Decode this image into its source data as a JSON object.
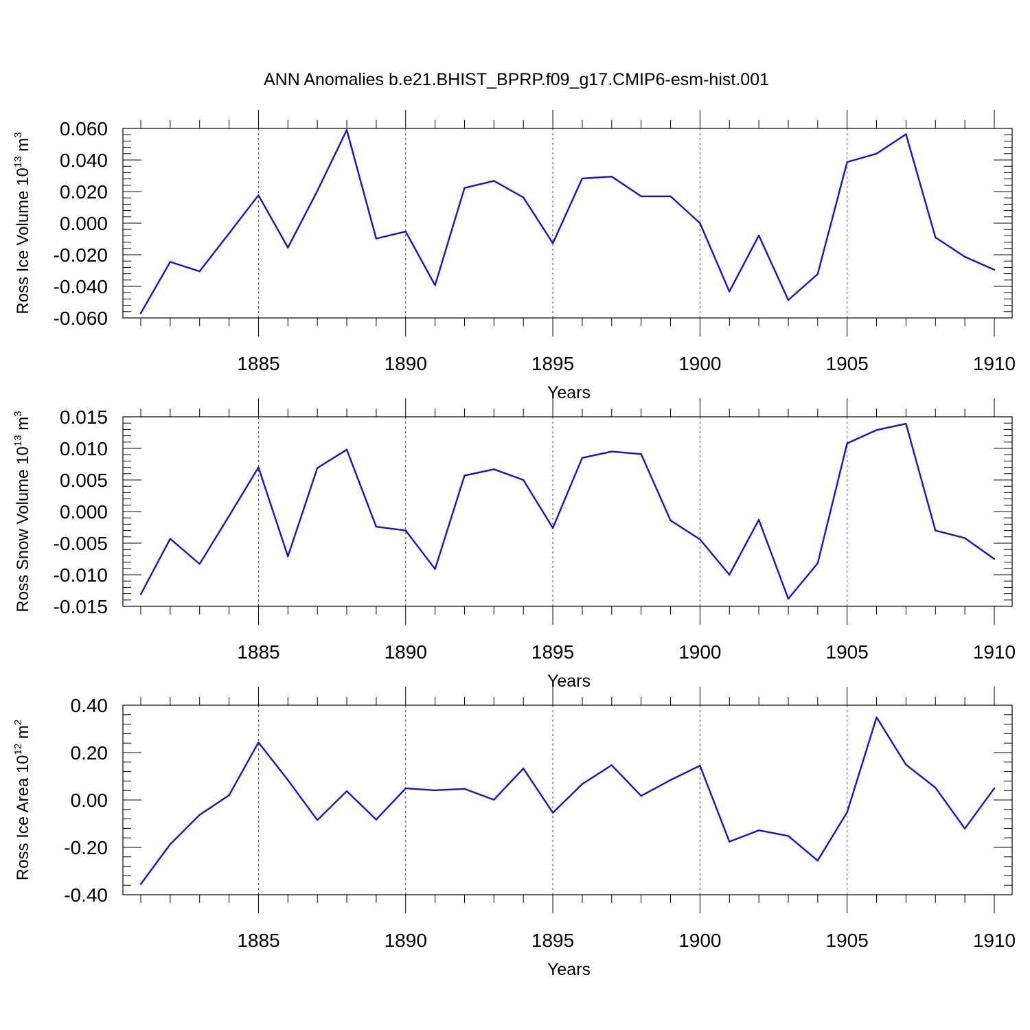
{
  "title": "ANN Anomalies b.e21.BHIST_BPRP.f09_g17.CMIP6-esm-hist.001",
  "colors": {
    "line": "#1010ee",
    "axis": "#000000",
    "grid": "#444444"
  },
  "chart_data": [
    {
      "type": "line",
      "ylabel": {
        "text": "Ross Ice Volume 10",
        "exponent": "13",
        "unit": " m",
        "unit_exponent": "3"
      },
      "xlabel": "Years",
      "xlim": [
        1881,
        1910
      ],
      "ylim": [
        -0.06,
        0.06
      ],
      "yticks": [
        -0.06,
        -0.04,
        -0.02,
        0.0,
        0.02,
        0.04,
        0.06
      ],
      "ytick_labels": [
        "-0.060",
        "-0.040",
        "-0.020",
        "0.000",
        "0.020",
        "0.040",
        "0.060"
      ],
      "xticks": [
        1885,
        1890,
        1895,
        1900,
        1905,
        1910
      ],
      "xtick_labels": [
        "1885",
        "1890",
        "1895",
        "1900",
        "1905",
        "1910"
      ],
      "grid": "vertical dashed at major x ticks",
      "series": [
        {
          "x": [
            1881,
            1882,
            1883,
            1884,
            1885,
            1886,
            1887,
            1888,
            1889,
            1890,
            1891,
            1892,
            1893,
            1894,
            1895,
            1896,
            1897,
            1898,
            1899,
            1900,
            1901,
            1902,
            1903,
            1904,
            1905,
            1906,
            1907,
            1908,
            1909,
            1910
          ],
          "values": [
            -0.057,
            -0.0245,
            -0.0305,
            -0.0065,
            0.0177,
            -0.0155,
            0.0205,
            0.059,
            -0.0098,
            -0.0053,
            -0.0393,
            0.0223,
            0.0268,
            0.0163,
            -0.0127,
            0.0283,
            0.0295,
            0.017,
            0.017,
            0.0,
            -0.0433,
            -0.0078,
            -0.0487,
            -0.0322,
            0.0387,
            0.044,
            0.0563,
            -0.009,
            -0.0213,
            -0.0295
          ]
        }
      ]
    },
    {
      "type": "line",
      "ylabel": {
        "text": "Ross Snow Volume 10",
        "exponent": "13",
        "unit": " m",
        "unit_exponent": "3"
      },
      "xlabel": "Years",
      "xlim": [
        1881,
        1910
      ],
      "ylim": [
        -0.015,
        0.015
      ],
      "yticks": [
        -0.015,
        -0.01,
        -0.005,
        0.0,
        0.005,
        0.01,
        0.015
      ],
      "ytick_labels": [
        "-0.015",
        "-0.010",
        "-0.005",
        "0.000",
        "0.005",
        "0.010",
        "0.015"
      ],
      "xticks": [
        1885,
        1890,
        1895,
        1900,
        1905,
        1910
      ],
      "xtick_labels": [
        "1885",
        "1890",
        "1895",
        "1900",
        "1905",
        "1910"
      ],
      "grid": "vertical dashed at major x ticks",
      "series": [
        {
          "x": [
            1881,
            1882,
            1883,
            1884,
            1885,
            1886,
            1887,
            1888,
            1889,
            1890,
            1891,
            1892,
            1893,
            1894,
            1895,
            1896,
            1897,
            1898,
            1899,
            1900,
            1901,
            1902,
            1903,
            1904,
            1905,
            1906,
            1907,
            1908,
            1909,
            1910
          ],
          "values": [
            -0.0131,
            -0.0043,
            -0.0083,
            -0.0007,
            0.007,
            -0.0071,
            0.0069,
            0.0098,
            -0.0024,
            -0.003,
            -0.0091,
            0.0057,
            0.0067,
            0.005,
            -0.0026,
            0.0085,
            0.0095,
            0.0091,
            -0.0014,
            -0.0044,
            -0.01,
            -0.0013,
            -0.0138,
            -0.0082,
            0.0108,
            0.0129,
            0.0139,
            -0.003,
            -0.0042,
            -0.0075
          ]
        }
      ]
    },
    {
      "type": "line",
      "ylabel": {
        "text": "Ross Ice Area 10",
        "exponent": "12",
        "unit": " m",
        "unit_exponent": "2"
      },
      "xlabel": "Years",
      "xlim": [
        1881,
        1910
      ],
      "ylim": [
        -0.4,
        0.4
      ],
      "yticks": [
        -0.4,
        -0.2,
        0.0,
        0.2,
        0.4
      ],
      "ytick_labels": [
        "-0.40",
        "-0.20",
        "0.00",
        "0.20",
        "0.40"
      ],
      "xticks": [
        1885,
        1890,
        1895,
        1900,
        1905,
        1910
      ],
      "xtick_labels": [
        "1885",
        "1890",
        "1895",
        "1900",
        "1905",
        "1910"
      ],
      "grid": "vertical dashed at major x ticks",
      "series": [
        {
          "x": [
            1881,
            1882,
            1883,
            1884,
            1885,
            1886,
            1887,
            1888,
            1889,
            1890,
            1891,
            1892,
            1893,
            1894,
            1895,
            1896,
            1897,
            1898,
            1899,
            1900,
            1901,
            1902,
            1903,
            1904,
            1905,
            1906,
            1907,
            1908,
            1909,
            1910
          ],
          "values": [
            -0.355,
            -0.187,
            -0.063,
            0.02,
            0.243,
            0.084,
            -0.085,
            0.037,
            -0.083,
            0.049,
            0.041,
            0.047,
            0.001,
            0.133,
            -0.054,
            0.067,
            0.147,
            0.017,
            0.084,
            0.145,
            -0.176,
            -0.128,
            -0.152,
            -0.256,
            -0.052,
            0.349,
            0.149,
            0.052,
            -0.121,
            0.049
          ]
        }
      ]
    }
  ]
}
